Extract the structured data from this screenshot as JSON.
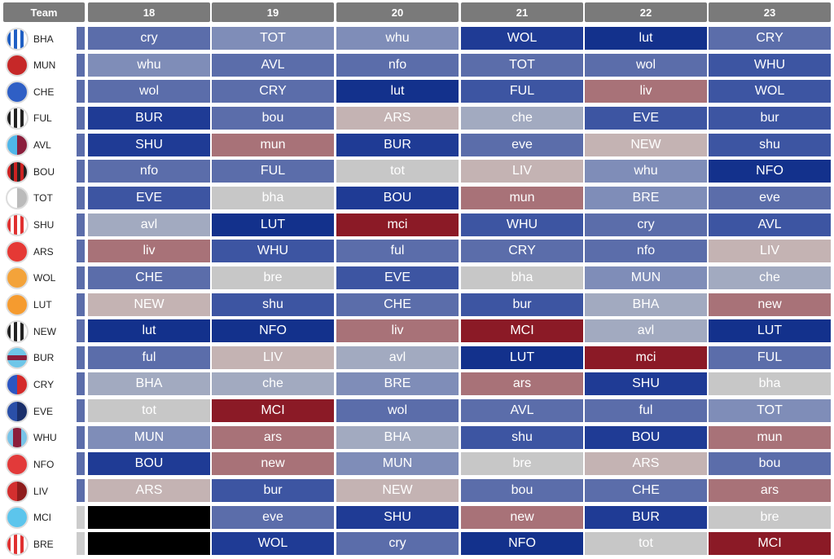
{
  "header": {
    "team_label": "Team",
    "gameweeks": [
      "18",
      "19",
      "20",
      "21",
      "22",
      "23"
    ]
  },
  "colors": {
    "1": "#c7c7c7",
    "2": "#c4b3b3",
    "3": "#a87278",
    "4": "#8b1a26",
    "-1": "#a2aac0",
    "-2": "#7f8db8",
    "-3": "#5b6daa",
    "-4": "#3d55a2",
    "-5": "#1f3b95",
    "-6": "#13318c",
    "blank": "#000000",
    "strip": "#5b6daa",
    "strip_blank": "#cccccc"
  },
  "teams": [
    {
      "code": "BHA",
      "icon": "bha-crest-icon",
      "crest": [
        "#1f5fc4",
        "#ffffff",
        "vstripe"
      ],
      "fixtures": [
        [
          "cry",
          -3
        ],
        [
          "TOT",
          -2
        ],
        [
          "whu",
          -2
        ],
        [
          "WOL",
          -5
        ],
        [
          "lut",
          -6
        ],
        [
          "CRY",
          -3
        ]
      ]
    },
    {
      "code": "MUN",
      "icon": "mun-crest-icon",
      "crest": [
        "#c62828",
        "#c62828",
        "solid"
      ],
      "fixtures": [
        [
          "whu",
          -2
        ],
        [
          "AVL",
          -3
        ],
        [
          "nfo",
          -3
        ],
        [
          "TOT",
          -3
        ],
        [
          "wol",
          -3
        ],
        [
          "WHU",
          -4
        ]
      ]
    },
    {
      "code": "CHE",
      "icon": "che-crest-icon",
      "crest": [
        "#2f5fc5",
        "#2f5fc5",
        "solid"
      ],
      "fixtures": [
        [
          "wol",
          -3
        ],
        [
          "CRY",
          -3
        ],
        [
          "lut",
          -6
        ],
        [
          "FUL",
          -4
        ],
        [
          "liv",
          3
        ],
        [
          "WOL",
          -4
        ]
      ]
    },
    {
      "code": "FUL",
      "icon": "ful-crest-icon",
      "crest": [
        "#222222",
        "#ffffff",
        "vstripe"
      ],
      "fixtures": [
        [
          "BUR",
          -5
        ],
        [
          "bou",
          -3
        ],
        [
          "ARS",
          2
        ],
        [
          "che",
          -1
        ],
        [
          "EVE",
          -4
        ],
        [
          "bur",
          -4
        ]
      ]
    },
    {
      "code": "AVL",
      "icon": "avl-crest-icon",
      "crest": [
        "#4fb6e8",
        "#8b1e3c",
        "half"
      ],
      "fixtures": [
        [
          "SHU",
          -5
        ],
        [
          "mun",
          3
        ],
        [
          "BUR",
          -5
        ],
        [
          "eve",
          -3
        ],
        [
          "NEW",
          2
        ],
        [
          "shu",
          -4
        ]
      ]
    },
    {
      "code": "BOU",
      "icon": "bou-crest-icon",
      "crest": [
        "#cc2222",
        "#222222",
        "vstripe"
      ],
      "fixtures": [
        [
          "nfo",
          -3
        ],
        [
          "FUL",
          -3
        ],
        [
          "tot",
          1
        ],
        [
          "LIV",
          2
        ],
        [
          "whu",
          -2
        ],
        [
          "NFO",
          -6
        ]
      ]
    },
    {
      "code": "TOT",
      "icon": "tot-crest-icon",
      "crest": [
        "#ffffff",
        "#bbbbbb",
        "half"
      ],
      "fixtures": [
        [
          "EVE",
          -4
        ],
        [
          "bha",
          1
        ],
        [
          "BOU",
          -5
        ],
        [
          "mun",
          3
        ],
        [
          "BRE",
          -2
        ],
        [
          "eve",
          -3
        ]
      ]
    },
    {
      "code": "SHU",
      "icon": "shu-crest-icon",
      "crest": [
        "#e03030",
        "#ffffff",
        "vstripe"
      ],
      "fixtures": [
        [
          "avl",
          -1
        ],
        [
          "LUT",
          -6
        ],
        [
          "mci",
          4
        ],
        [
          "WHU",
          -4
        ],
        [
          "cry",
          -3
        ],
        [
          "AVL",
          -4
        ]
      ]
    },
    {
      "code": "ARS",
      "icon": "ars-crest-icon",
      "crest": [
        "#e53935",
        "#e53935",
        "solid"
      ],
      "fixtures": [
        [
          "liv",
          3
        ],
        [
          "WHU",
          -4
        ],
        [
          "ful",
          -3
        ],
        [
          "CRY",
          -3
        ],
        [
          "nfo",
          -3
        ],
        [
          "LIV",
          2
        ]
      ]
    },
    {
      "code": "WOL",
      "icon": "wol-crest-icon",
      "crest": [
        "#f3a33a",
        "#f3a33a",
        "solid"
      ],
      "fixtures": [
        [
          "CHE",
          -3
        ],
        [
          "bre",
          1
        ],
        [
          "EVE",
          -4
        ],
        [
          "bha",
          1
        ],
        [
          "MUN",
          -2
        ],
        [
          "che",
          -1
        ]
      ]
    },
    {
      "code": "LUT",
      "icon": "lut-crest-icon",
      "crest": [
        "#f59b2f",
        "#f59b2f",
        "solid"
      ],
      "fixtures": [
        [
          "NEW",
          2
        ],
        [
          "shu",
          -4
        ],
        [
          "CHE",
          -3
        ],
        [
          "bur",
          -4
        ],
        [
          "BHA",
          -1
        ],
        [
          "new",
          3
        ]
      ]
    },
    {
      "code": "NEW",
      "icon": "new-crest-icon",
      "crest": [
        "#222222",
        "#ffffff",
        "vstripe"
      ],
      "fixtures": [
        [
          "lut",
          -6
        ],
        [
          "NFO",
          -6
        ],
        [
          "liv",
          3
        ],
        [
          "MCI",
          4
        ],
        [
          "avl",
          -1
        ],
        [
          "LUT",
          -6
        ]
      ]
    },
    {
      "code": "BUR",
      "icon": "bur-crest-icon",
      "crest": [
        "#6ec6e8",
        "#8b1e3c",
        "hband"
      ],
      "fixtures": [
        [
          "ful",
          -3
        ],
        [
          "LIV",
          2
        ],
        [
          "avl",
          -1
        ],
        [
          "LUT",
          -6
        ],
        [
          "mci",
          4
        ],
        [
          "FUL",
          -3
        ]
      ]
    },
    {
      "code": "CRY",
      "icon": "cry-crest-icon",
      "crest": [
        "#2c56c2",
        "#d42a2a",
        "half"
      ],
      "fixtures": [
        [
          "BHA",
          -1
        ],
        [
          "che",
          -1
        ],
        [
          "BRE",
          -2
        ],
        [
          "ars",
          3
        ],
        [
          "SHU",
          -5
        ],
        [
          "bha",
          1
        ]
      ]
    },
    {
      "code": "EVE",
      "icon": "eve-crest-icon",
      "crest": [
        "#2a4fa8",
        "#1a2f6a",
        "half"
      ],
      "fixtures": [
        [
          "tot",
          1
        ],
        [
          "MCI",
          4
        ],
        [
          "wol",
          -3
        ],
        [
          "AVL",
          -3
        ],
        [
          "ful",
          -3
        ],
        [
          "TOT",
          -2
        ]
      ]
    },
    {
      "code": "WHU",
      "icon": "whu-crest-icon",
      "crest": [
        "#8b1e3c",
        "#79c4e8",
        "centre"
      ],
      "fixtures": [
        [
          "MUN",
          -2
        ],
        [
          "ars",
          3
        ],
        [
          "BHA",
          -1
        ],
        [
          "shu",
          -4
        ],
        [
          "BOU",
          -5
        ],
        [
          "mun",
          3
        ]
      ]
    },
    {
      "code": "NFO",
      "icon": "nfo-crest-icon",
      "crest": [
        "#e23a3a",
        "#e23a3a",
        "solid"
      ],
      "fixtures": [
        [
          "BOU",
          -5
        ],
        [
          "new",
          3
        ],
        [
          "MUN",
          -2
        ],
        [
          "bre",
          1
        ],
        [
          "ARS",
          2
        ],
        [
          "bou",
          -3
        ]
      ]
    },
    {
      "code": "LIV",
      "icon": "liv-crest-icon",
      "crest": [
        "#d32f2f",
        "#8e1d1d",
        "half"
      ],
      "fixtures": [
        [
          "ARS",
          2
        ],
        [
          "bur",
          -4
        ],
        [
          "NEW",
          2
        ],
        [
          "bou",
          -3
        ],
        [
          "CHE",
          -3
        ],
        [
          "ars",
          3
        ]
      ]
    },
    {
      "code": "MCI",
      "icon": "mci-crest-icon",
      "crest": [
        "#5cc5ec",
        "#5cc5ec",
        "solid"
      ],
      "fixtures": [
        [
          "",
          "blank"
        ],
        [
          "eve",
          -3
        ],
        [
          "SHU",
          -5
        ],
        [
          "new",
          3
        ],
        [
          "BUR",
          -5
        ],
        [
          "bre",
          1
        ]
      ]
    },
    {
      "code": "BRE",
      "icon": "bre-crest-icon",
      "crest": [
        "#e03030",
        "#ffffff",
        "vstripe"
      ],
      "fixtures": [
        [
          "",
          "blank"
        ],
        [
          "WOL",
          -5
        ],
        [
          "cry",
          -3
        ],
        [
          "NFO",
          -6
        ],
        [
          "tot",
          1
        ],
        [
          "MCI",
          4
        ]
      ]
    }
  ]
}
